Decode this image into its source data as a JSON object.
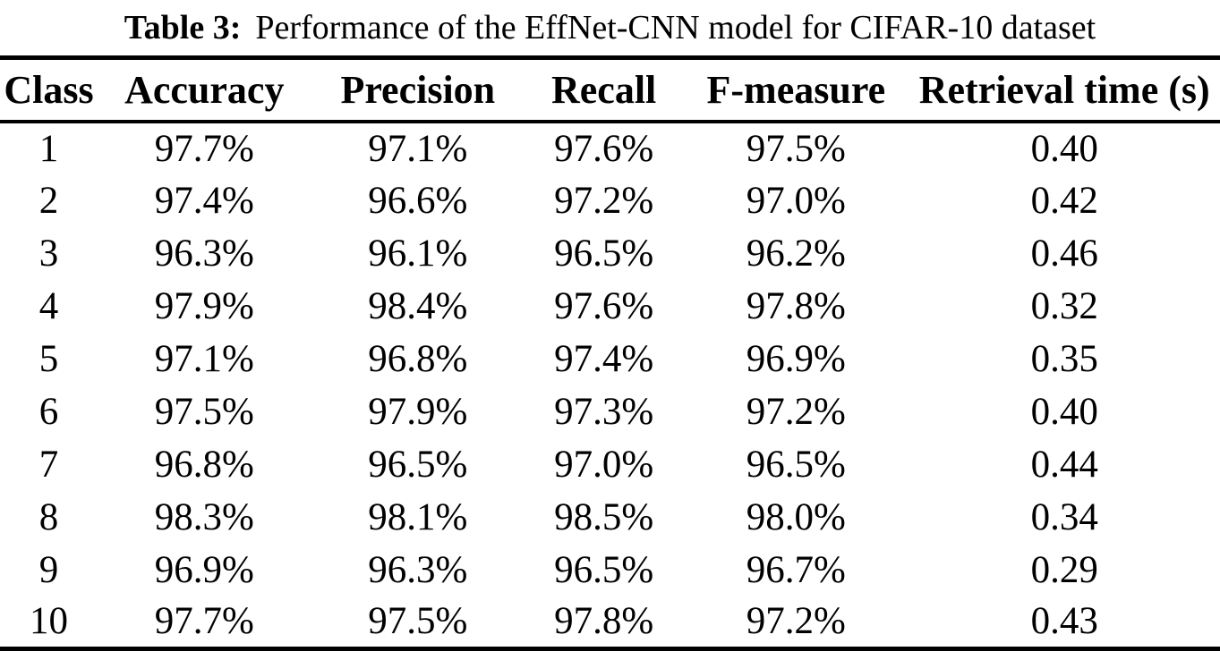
{
  "caption": {
    "label": "Table 3:",
    "text": "Performance of the EffNet-CNN model for CIFAR-10 dataset"
  },
  "table": {
    "headers": [
      "Class",
      "Accuracy",
      "Precision",
      "Recall",
      "F-measure",
      "Retrieval time (s)"
    ],
    "rows": [
      [
        "1",
        "97.7%",
        "97.1%",
        "97.6%",
        "97.5%",
        "0.40"
      ],
      [
        "2",
        "97.4%",
        "96.6%",
        "97.2%",
        "97.0%",
        "0.42"
      ],
      [
        "3",
        "96.3%",
        "96.1%",
        "96.5%",
        "96.2%",
        "0.46"
      ],
      [
        "4",
        "97.9%",
        "98.4%",
        "97.6%",
        "97.8%",
        "0.32"
      ],
      [
        "5",
        "97.1%",
        "96.8%",
        "97.4%",
        "96.9%",
        "0.35"
      ],
      [
        "6",
        "97.5%",
        "97.9%",
        "97.3%",
        "97.2%",
        "0.40"
      ],
      [
        "7",
        "96.8%",
        "96.5%",
        "97.0%",
        "96.5%",
        "0.44"
      ],
      [
        "8",
        "98.3%",
        "98.1%",
        "98.5%",
        "98.0%",
        "0.34"
      ],
      [
        "9",
        "96.9%",
        "96.3%",
        "96.5%",
        "96.7%",
        "0.29"
      ],
      [
        "10",
        "97.7%",
        "97.5%",
        "97.8%",
        "97.2%",
        "0.43"
      ]
    ]
  },
  "chart_data": {
    "type": "table",
    "title": "Table 3: Performance of the EffNet-CNN model for CIFAR-10 dataset",
    "columns": [
      "Class",
      "Accuracy",
      "Precision",
      "Recall",
      "F-measure",
      "Retrieval time (s)"
    ],
    "rows": [
      [
        1,
        "97.7%",
        "97.1%",
        "97.6%",
        "97.5%",
        0.4
      ],
      [
        2,
        "97.4%",
        "96.6%",
        "97.2%",
        "97.0%",
        0.42
      ],
      [
        3,
        "96.3%",
        "96.1%",
        "96.5%",
        "96.2%",
        0.46
      ],
      [
        4,
        "97.9%",
        "98.4%",
        "97.6%",
        "97.8%",
        0.32
      ],
      [
        5,
        "97.1%",
        "96.8%",
        "97.4%",
        "96.9%",
        0.35
      ],
      [
        6,
        "97.5%",
        "97.9%",
        "97.3%",
        "97.2%",
        0.4
      ],
      [
        7,
        "96.8%",
        "96.5%",
        "97.0%",
        "96.5%",
        0.44
      ],
      [
        8,
        "98.3%",
        "98.1%",
        "98.5%",
        "98.0%",
        0.34
      ],
      [
        9,
        "96.9%",
        "96.3%",
        "96.5%",
        "96.7%",
        0.29
      ],
      [
        10,
        "97.7%",
        "97.5%",
        "97.8%",
        "97.2%",
        0.43
      ]
    ]
  },
  "colors": {
    "text": "#000000",
    "background": "#ffffff",
    "rule": "#000000"
  }
}
